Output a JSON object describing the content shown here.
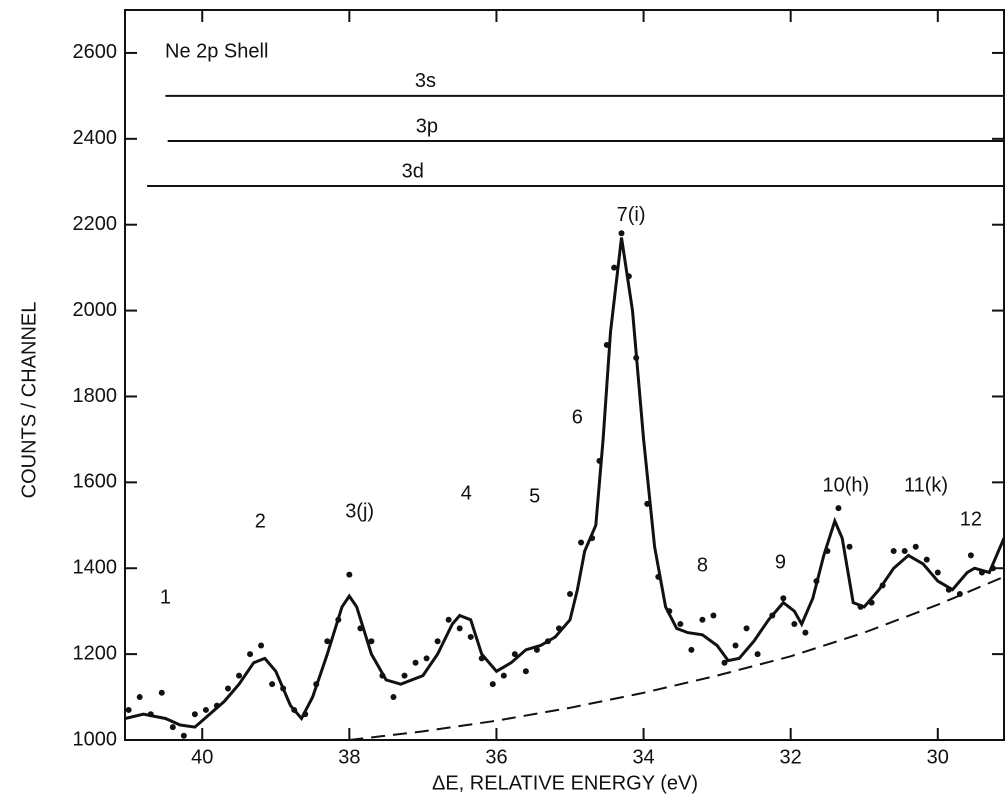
{
  "chart_data": {
    "type": "line",
    "title": "Ne 2p Shell",
    "x_label": "ΔE, RELATIVE ENERGY (eV)",
    "y_label": "COUNTS / CHANNEL",
    "xlim": [
      41.05,
      29.1
    ],
    "ylim": [
      1000,
      2700
    ],
    "xticks": [
      40,
      38,
      36,
      34,
      32,
      30
    ],
    "yticks": [
      1000,
      1200,
      1400,
      1600,
      1800,
      2000,
      2200,
      2400,
      2600
    ],
    "series": [
      {
        "style": "line",
        "color": "#111111",
        "x": [
          41.05,
          40.8,
          40.5,
          40.3,
          40.1,
          39.9,
          39.7,
          39.5,
          39.3,
          39.15,
          39.0,
          38.8,
          38.65,
          38.5,
          38.3,
          38.1,
          38.0,
          37.9,
          37.7,
          37.5,
          37.3,
          37.0,
          36.8,
          36.6,
          36.5,
          36.35,
          36.2,
          36.0,
          35.8,
          35.6,
          35.4,
          35.2,
          35.0,
          34.9,
          34.8,
          34.65,
          34.55,
          34.45,
          34.3,
          34.15,
          34.0,
          33.85,
          33.7,
          33.55,
          33.4,
          33.2,
          33.0,
          32.85,
          32.7,
          32.5,
          32.3,
          32.1,
          31.95,
          31.85,
          31.7,
          31.55,
          31.4,
          31.3,
          31.15,
          31.0,
          30.8,
          30.6,
          30.4,
          30.2,
          30.0,
          29.8,
          29.6,
          29.5,
          29.3,
          29.1
        ],
        "values": [
          1050,
          1060,
          1050,
          1035,
          1030,
          1060,
          1090,
          1130,
          1180,
          1190,
          1160,
          1080,
          1050,
          1100,
          1200,
          1310,
          1335,
          1310,
          1200,
          1140,
          1130,
          1150,
          1200,
          1270,
          1290,
          1280,
          1200,
          1160,
          1180,
          1210,
          1220,
          1240,
          1280,
          1350,
          1440,
          1500,
          1700,
          1950,
          2170,
          2000,
          1700,
          1450,
          1310,
          1260,
          1250,
          1245,
          1220,
          1185,
          1190,
          1230,
          1280,
          1320,
          1300,
          1270,
          1330,
          1430,
          1510,
          1470,
          1320,
          1310,
          1350,
          1400,
          1430,
          1410,
          1370,
          1350,
          1390,
          1400,
          1390,
          1470
        ]
      },
      {
        "style": "points",
        "color": "#111111",
        "x": [
          41.0,
          40.85,
          40.7,
          40.55,
          40.4,
          40.25,
          40.1,
          39.95,
          39.8,
          39.65,
          39.5,
          39.35,
          39.2,
          39.05,
          38.9,
          38.75,
          38.6,
          38.45,
          38.3,
          38.15,
          38.0,
          37.85,
          37.7,
          37.55,
          37.4,
          37.25,
          37.1,
          36.95,
          36.8,
          36.65,
          36.5,
          36.35,
          36.2,
          36.05,
          35.9,
          35.75,
          35.6,
          35.45,
          35.3,
          35.15,
          35.0,
          34.85,
          34.7,
          34.6,
          34.5,
          34.4,
          34.3,
          34.2,
          34.1,
          33.95,
          33.8,
          33.65,
          33.5,
          33.35,
          33.2,
          33.05,
          32.9,
          32.75,
          32.6,
          32.45,
          32.25,
          32.1,
          31.95,
          31.8,
          31.65,
          31.5,
          31.35,
          31.2,
          31.05,
          30.9,
          30.75,
          30.6,
          30.45,
          30.3,
          30.15,
          30.0,
          29.85,
          29.7,
          29.55,
          29.4,
          29.25
        ],
        "values": [
          1070,
          1100,
          1060,
          1110,
          1030,
          1010,
          1060,
          1070,
          1080,
          1120,
          1150,
          1200,
          1220,
          1130,
          1120,
          1070,
          1060,
          1130,
          1230,
          1280,
          1385,
          1260,
          1230,
          1150,
          1100,
          1150,
          1180,
          1190,
          1230,
          1280,
          1260,
          1240,
          1190,
          1130,
          1150,
          1200,
          1160,
          1210,
          1230,
          1260,
          1340,
          1460,
          1470,
          1650,
          1920,
          2100,
          2180,
          2080,
          1890,
          1550,
          1380,
          1300,
          1270,
          1210,
          1280,
          1290,
          1180,
          1220,
          1260,
          1200,
          1290,
          1330,
          1270,
          1250,
          1370,
          1440,
          1540,
          1450,
          1310,
          1320,
          1360,
          1440,
          1440,
          1450,
          1420,
          1390,
          1350,
          1340,
          1430,
          1390,
          1400
        ]
      },
      {
        "style": "dashed",
        "color": "#111111",
        "x": [
          38.0,
          37.0,
          36.0,
          35.0,
          34.0,
          33.0,
          32.0,
          31.0,
          30.0,
          29.1
        ],
        "values": [
          1000,
          1020,
          1045,
          1075,
          1110,
          1150,
          1195,
          1250,
          1315,
          1380
        ]
      }
    ],
    "levels": [
      {
        "name": "3s",
        "value": 2500,
        "from": 40.5,
        "to": 29.1
      },
      {
        "name": "3p",
        "value": 2395,
        "from": 40.47,
        "to": 29.1
      },
      {
        "name": "3d",
        "value": 2290,
        "from": 40.75,
        "to": 29.1
      }
    ],
    "annotations": [
      {
        "text": "1",
        "x": 40.5,
        "y": 1330
      },
      {
        "text": "2",
        "x": 39.21,
        "y": 1507
      },
      {
        "text": "3(j)",
        "x": 37.86,
        "y": 1530
      },
      {
        "text": "4",
        "x": 36.41,
        "y": 1572
      },
      {
        "text": "5",
        "x": 35.48,
        "y": 1565
      },
      {
        "text": "6",
        "x": 34.9,
        "y": 1749
      },
      {
        "text": "7(i)",
        "x": 34.17,
        "y": 2221
      },
      {
        "text": "8",
        "x": 33.2,
        "y": 1405
      },
      {
        "text": "9",
        "x": 32.14,
        "y": 1412
      },
      {
        "text": "10(h)",
        "x": 31.25,
        "y": 1591
      },
      {
        "text": "11(k)",
        "x": 30.16,
        "y": 1591
      },
      {
        "text": "12",
        "x": 29.55,
        "y": 1512
      }
    ]
  }
}
